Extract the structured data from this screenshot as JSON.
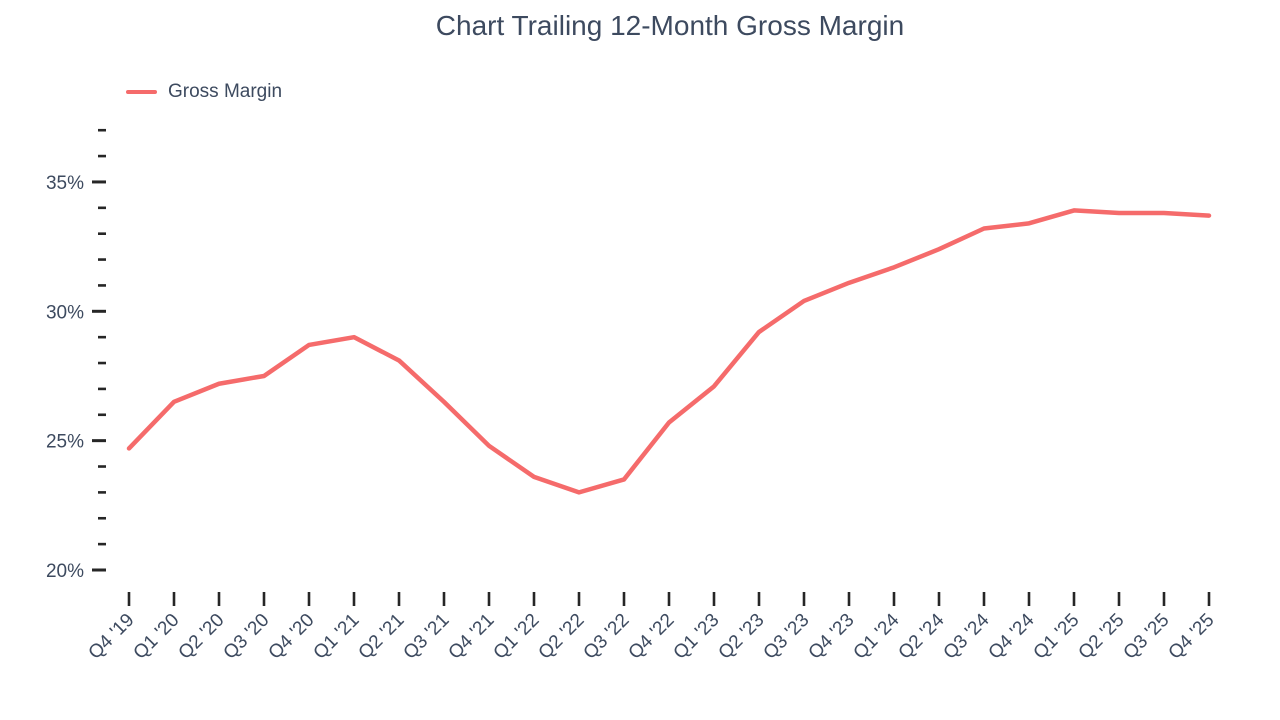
{
  "chart_data": {
    "type": "line",
    "title": "Chart Trailing 12-Month Gross Margin",
    "xlabel": "",
    "ylabel": "",
    "categories": [
      "Q4 '19",
      "Q1 '20",
      "Q2 '20",
      "Q3 '20",
      "Q4 '20",
      "Q1 '21",
      "Q2 '21",
      "Q3 '21",
      "Q4 '21",
      "Q1 '22",
      "Q2 '22",
      "Q3 '22",
      "Q4 '22",
      "Q1 '23",
      "Q2 '23",
      "Q3 '23",
      "Q4 '23",
      "Q1 '24",
      "Q2 '24",
      "Q3 '24",
      "Q4 '24",
      "Q1 '25",
      "Q2 '25",
      "Q3 '25",
      "Q4 '25"
    ],
    "series": [
      {
        "name": "Gross Margin",
        "color": "#F56B6B",
        "values": [
          24.7,
          26.5,
          27.2,
          27.5,
          28.7,
          29.0,
          28.1,
          26.5,
          24.8,
          23.6,
          23.0,
          23.5,
          25.7,
          27.1,
          29.2,
          30.4,
          31.1,
          31.7,
          32.4,
          33.2,
          33.4,
          33.9,
          33.8,
          33.8,
          33.7
        ]
      }
    ],
    "y_axis": {
      "unit": "%",
      "major_ticks": [
        {
          "value": 20,
          "label": "20%"
        },
        {
          "value": 25,
          "label": "25%"
        },
        {
          "value": 30,
          "label": "30%"
        },
        {
          "value": 35,
          "label": "35%"
        }
      ],
      "minor_ticks": [
        21,
        22,
        23,
        24,
        26,
        27,
        28,
        29,
        31,
        32,
        33,
        34,
        36,
        37
      ],
      "ylim": [
        19,
        37.5
      ]
    },
    "grid": false,
    "legend_position": "top-left",
    "colors": {
      "line": "#F56B6B",
      "text": "#3D4A5F",
      "tick": "#262626",
      "background": "#FFFFFF"
    }
  }
}
